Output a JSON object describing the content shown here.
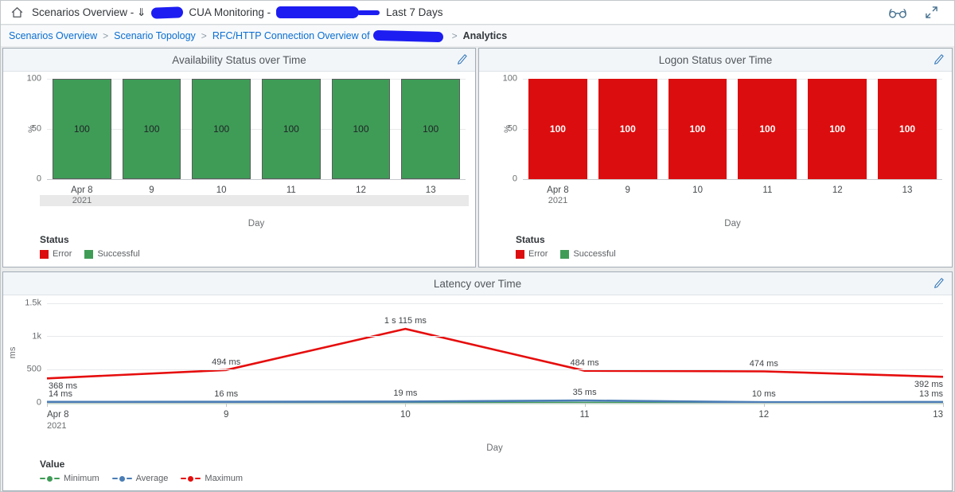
{
  "topbar": {
    "title_segments": [
      "Scenarios Overview - ⇓",
      "CUA Monitoring -",
      "Last 7 Days"
    ],
    "actions": [
      {
        "name": "inspect",
        "icon": "glasses-icon"
      },
      {
        "name": "enter-fullscreen",
        "icon": "expand-icon"
      }
    ]
  },
  "breadcrumb": {
    "separator": ">",
    "items": [
      {
        "label": "Scenarios Overview",
        "type": "link"
      },
      {
        "label": "Scenario Topology",
        "type": "link"
      },
      {
        "label": "RFC/HTTP Connection Overview of",
        "type": "link",
        "redacted_suffix": true
      },
      {
        "label": "Analytics",
        "type": "current"
      }
    ]
  },
  "colors": {
    "link_blue": "#0a6ed1",
    "success_green": "#3f9c57",
    "error_red": "#dc0d0e",
    "average_blue": "#4a7db5",
    "maximum_red": "#e60d0d",
    "redaction_blue": "#1d1df2",
    "icon_steel": "#46708f"
  },
  "chart_data": [
    {
      "id": "availability",
      "type": "bar",
      "title": "Availability Status over Time",
      "categories": [
        "Apr 8",
        "9",
        "10",
        "11",
        "12",
        "13"
      ],
      "year_label": "2021",
      "series": [
        {
          "name": "Successful",
          "values": [
            100,
            100,
            100,
            100,
            100,
            100
          ]
        }
      ],
      "value_labels": [
        "100",
        "100",
        "100",
        "100",
        "100",
        "100"
      ],
      "bar_color": "#3f9c57",
      "bar_border": "#5b5b5e",
      "value_label_color": "#1f2326",
      "value_label_bold": false,
      "xlabel": "Day",
      "ylabel": "%",
      "ylim": [
        0,
        100
      ],
      "yticks": [
        0,
        50,
        100
      ],
      "legend_title": "Status",
      "legend": [
        {
          "label": "Error",
          "color": "#dc0d0e"
        },
        {
          "label": "Successful",
          "color": "#3f9c57"
        }
      ],
      "time_scroll_band": true
    },
    {
      "id": "logon",
      "type": "bar",
      "title": "Logon Status over Time",
      "categories": [
        "Apr 8",
        "9",
        "10",
        "11",
        "12",
        "13"
      ],
      "year_label": "2021",
      "series": [
        {
          "name": "Error",
          "values": [
            100,
            100,
            100,
            100,
            100,
            100
          ]
        }
      ],
      "value_labels": [
        "100",
        "100",
        "100",
        "100",
        "100",
        "100"
      ],
      "bar_color": "#dc0d0e",
      "bar_border": null,
      "value_label_color": "#ffffff",
      "value_label_bold": true,
      "xlabel": "Day",
      "ylabel": "%",
      "ylim": [
        0,
        100
      ],
      "yticks": [
        0,
        50,
        100
      ],
      "legend_title": "Status",
      "legend": [
        {
          "label": "Error",
          "color": "#dc0d0e"
        },
        {
          "label": "Successful",
          "color": "#3f9c57"
        }
      ],
      "time_scroll_band": false
    },
    {
      "id": "latency",
      "type": "line",
      "title": "Latency over Time",
      "x": [
        "Apr 8",
        "9",
        "10",
        "11",
        "12",
        "13"
      ],
      "year_label": "2021",
      "xlabel": "Day",
      "ylabel": "ms",
      "ylim": [
        0,
        1500
      ],
      "yticks": [
        {
          "v": 0,
          "label": "0"
        },
        {
          "v": 500,
          "label": "500"
        },
        {
          "v": 1000,
          "label": "1k"
        },
        {
          "v": 1500,
          "label": "1.5k"
        }
      ],
      "legend_title": "Value",
      "series": [
        {
          "name": "Minimum",
          "color": "#3f9c57",
          "values": [
            0,
            0,
            0,
            0,
            0,
            0
          ],
          "labels": null
        },
        {
          "name": "Average",
          "color": "#4a7db5",
          "values": [
            14,
            16,
            19,
            35,
            10,
            13
          ],
          "labels": [
            "14 ms",
            "16 ms",
            "19 ms",
            "35 ms",
            "10 ms",
            "13 ms"
          ]
        },
        {
          "name": "Maximum",
          "color": "#e60d0d",
          "values": [
            368,
            494,
            1115,
            484,
            474,
            392
          ],
          "labels": [
            "368 ms",
            "494 ms",
            "1 s 115 ms",
            "484 ms",
            "474 ms",
            "392 ms"
          ]
        }
      ]
    }
  ]
}
